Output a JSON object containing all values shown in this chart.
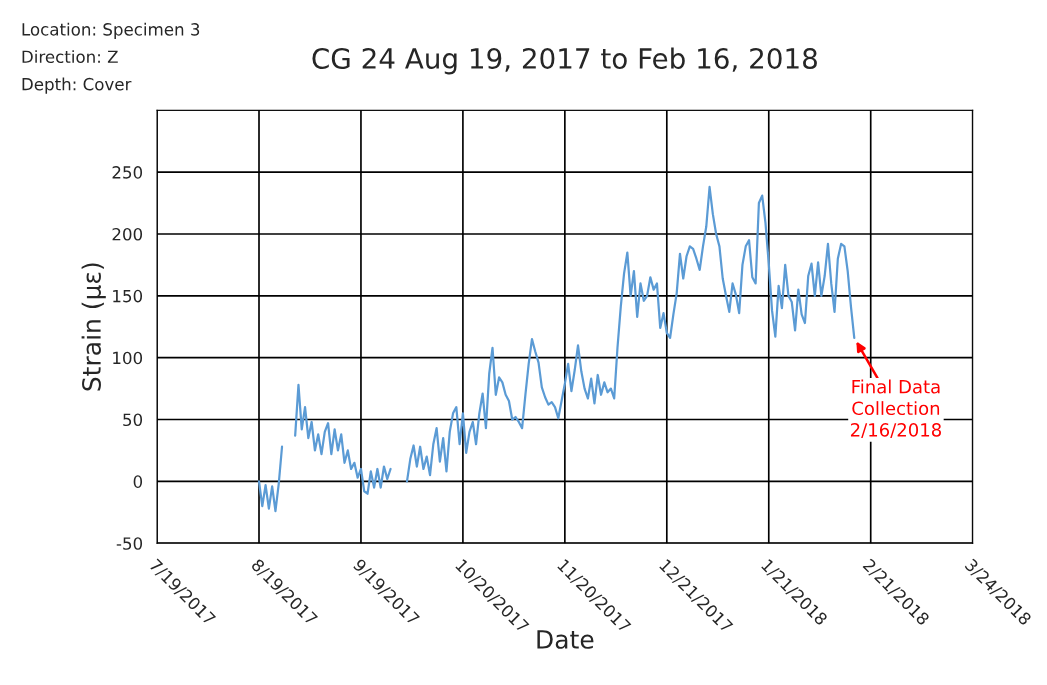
{
  "chart_data": {
    "type": "line",
    "title": "CG 24 Aug 19, 2017 to Feb 16, 2018",
    "xlabel": "Date",
    "ylabel": "Strain (με)",
    "annotations": [
      "Location: Specimen 3",
      "Direction: Z",
      "Depth: Cover",
      {
        "text": "Final Data\nCollection\n2/16/2018",
        "x": "2018-02-16",
        "y": 116
      }
    ],
    "xlim": [
      "2017-07-19",
      "2018-03-24"
    ],
    "xticks": [
      {
        "value": "2017-07-19",
        "label": "7/19/2017"
      },
      {
        "value": "2017-08-19",
        "label": "8/19/2017"
      },
      {
        "value": "2017-09-19",
        "label": "9/19/2017"
      },
      {
        "value": "2017-10-20",
        "label": "10/20/2017"
      },
      {
        "value": "2017-11-20",
        "label": "11/20/2017"
      },
      {
        "value": "2017-12-21",
        "label": "12/21/2017"
      },
      {
        "value": "2018-01-21",
        "label": "1/21/2018"
      },
      {
        "value": "2018-02-21",
        "label": "2/21/2018"
      },
      {
        "value": "2018-03-24",
        "label": "3/24/2018"
      }
    ],
    "ylim": [
      -50,
      300
    ],
    "yticks": [
      -50,
      0,
      50,
      100,
      150,
      200,
      250,
      {
        "value": 300,
        "label": null
      }
    ],
    "grid": true,
    "legend": false,
    "marker": "none",
    "line_style": "solid",
    "series": [
      {
        "color": "#5b9bd5",
        "x": [
          "2017-08-19",
          "2017-08-20",
          "2017-08-21",
          "2017-08-22",
          "2017-08-23",
          "2017-08-24",
          "2017-08-25",
          "2017-08-26",
          "2017-08-27",
          "2017-08-30",
          "2017-08-31",
          "2017-09-01",
          "2017-09-02",
          "2017-09-03",
          "2017-09-04",
          "2017-09-05",
          "2017-09-06",
          "2017-09-07",
          "2017-09-08",
          "2017-09-09",
          "2017-09-10",
          "2017-09-11",
          "2017-09-12",
          "2017-09-13",
          "2017-09-14",
          "2017-09-15",
          "2017-09-16",
          "2017-09-17",
          "2017-09-18",
          "2017-09-19",
          "2017-09-20",
          "2017-09-21",
          "2017-09-22",
          "2017-09-23",
          "2017-09-24",
          "2017-09-25",
          "2017-09-26",
          "2017-09-27",
          "2017-09-28",
          "2017-09-30",
          "2017-10-03",
          "2017-10-04",
          "2017-10-05",
          "2017-10-06",
          "2017-10-07",
          "2017-10-08",
          "2017-10-09",
          "2017-10-10",
          "2017-10-11",
          "2017-10-12",
          "2017-10-13",
          "2017-10-14",
          "2017-10-15",
          "2017-10-16",
          "2017-10-17",
          "2017-10-18",
          "2017-10-19",
          "2017-10-20",
          "2017-10-21",
          "2017-10-22",
          "2017-10-23",
          "2017-10-24",
          "2017-10-25",
          "2017-10-26",
          "2017-10-27",
          "2017-10-28",
          "2017-10-29",
          "2017-10-30",
          "2017-10-31",
          "2017-11-01",
          "2017-11-02",
          "2017-11-03",
          "2017-11-04",
          "2017-11-05",
          "2017-11-06",
          "2017-11-07",
          "2017-11-08",
          "2017-11-09",
          "2017-11-10",
          "2017-11-11",
          "2017-11-12",
          "2017-11-13",
          "2017-11-14",
          "2017-11-15",
          "2017-11-16",
          "2017-11-17",
          "2017-11-18",
          "2017-11-19",
          "2017-11-20",
          "2017-11-21",
          "2017-11-22",
          "2017-11-23",
          "2017-11-24",
          "2017-11-25",
          "2017-11-26",
          "2017-11-27",
          "2017-11-28",
          "2017-11-29",
          "2017-11-30",
          "2017-12-01",
          "2017-12-02",
          "2017-12-03",
          "2017-12-04",
          "2017-12-05",
          "2017-12-06",
          "2017-12-07",
          "2017-12-08",
          "2017-12-09",
          "2017-12-10",
          "2017-12-11",
          "2017-12-12",
          "2017-12-13",
          "2017-12-14",
          "2017-12-15",
          "2017-12-16",
          "2017-12-17",
          "2017-12-18",
          "2017-12-19",
          "2017-12-20",
          "2017-12-21",
          "2017-12-22",
          "2017-12-23",
          "2017-12-24",
          "2017-12-25",
          "2017-12-26",
          "2017-12-27",
          "2017-12-28",
          "2017-12-29",
          "2017-12-30",
          "2017-12-31",
          "2018-01-01",
          "2018-01-02",
          "2018-01-03",
          "2018-01-04",
          "2018-01-05",
          "2018-01-06",
          "2018-01-07",
          "2018-01-08",
          "2018-01-09",
          "2018-01-10",
          "2018-01-11",
          "2018-01-12",
          "2018-01-13",
          "2018-01-14",
          "2018-01-15",
          "2018-01-16",
          "2018-01-17",
          "2018-01-18",
          "2018-01-19",
          "2018-01-20",
          "2018-01-21",
          "2018-01-22",
          "2018-01-23",
          "2018-01-24",
          "2018-01-25",
          "2018-01-26",
          "2018-01-27",
          "2018-01-28",
          "2018-01-29",
          "2018-01-30",
          "2018-01-31",
          "2018-02-01",
          "2018-02-02",
          "2018-02-03",
          "2018-02-04",
          "2018-02-05",
          "2018-02-06",
          "2018-02-07",
          "2018-02-08",
          "2018-02-09",
          "2018-02-10",
          "2018-02-11",
          "2018-02-12",
          "2018-02-13",
          "2018-02-14",
          "2018-02-15",
          "2018-02-16"
        ],
        "values": [
          0,
          -20,
          -3,
          -22,
          -4,
          -24,
          -2,
          28,
          null,
          37,
          78,
          42,
          60,
          35,
          48,
          25,
          38,
          22,
          40,
          47,
          22,
          42,
          25,
          38,
          15,
          25,
          10,
          15,
          3,
          10,
          -8,
          -10,
          8,
          -5,
          10,
          -5,
          12,
          2,
          10,
          null,
          0,
          18,
          29,
          12,
          28,
          10,
          20,
          5,
          30,
          43,
          16,
          35,
          8,
          40,
          55,
          60,
          30,
          55,
          23,
          40,
          48,
          30,
          55,
          71,
          43,
          87,
          108,
          70,
          84,
          80,
          70,
          65,
          50,
          52,
          48,
          43,
          70,
          95,
          115,
          105,
          96,
          76,
          68,
          62,
          64,
          60,
          51,
          65,
          79,
          95,
          73,
          90,
          110,
          89,
          75,
          67,
          83,
          63,
          86,
          70,
          80,
          72,
          75,
          67,
          108,
          141,
          168,
          185,
          150,
          170,
          133,
          160,
          146,
          150,
          165,
          155,
          160,
          124,
          136,
          120,
          116,
          135,
          152,
          184,
          164,
          182,
          190,
          188,
          180,
          171,
          190,
          206,
          238,
          216,
          200,
          190,
          164,
          150,
          137,
          160,
          151,
          136,
          175,
          190,
          195,
          165,
          160,
          225,
          231,
          209,
          176,
          138,
          117,
          158,
          140,
          175,
          150,
          145,
          122,
          155,
          135,
          128,
          166,
          176,
          150,
          177,
          150,
          166,
          192,
          160,
          137,
          180,
          192,
          190,
          170,
          141,
          116
        ]
      }
    ]
  }
}
